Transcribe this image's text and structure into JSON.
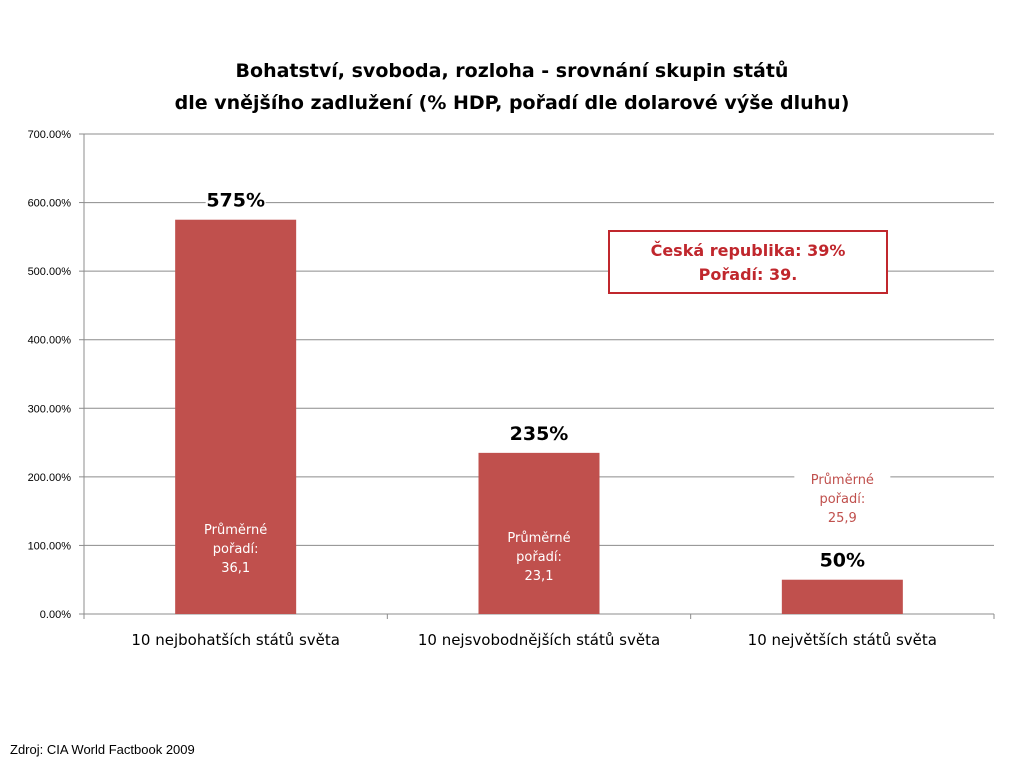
{
  "chart_data": {
    "type": "bar",
    "title": "Bohatství, svoboda, rozloha - srovnání skupin států",
    "subtitle": "dle vnějšího zadlužení (% HDP, pořadí dle dolarové výše dluhu)",
    "categories": [
      "10 nejbohatších států světa",
      "10 nejsvobodnějších států světa",
      "10 největších států světa"
    ],
    "values": [
      575,
      235,
      50
    ],
    "data_labels": [
      "575%",
      "235%",
      "50%"
    ],
    "ylim": [
      0,
      700
    ],
    "y_ticks": [
      "0.00%",
      "100.00%",
      "200.00%",
      "300.00%",
      "400.00%",
      "500.00%",
      "600.00%",
      "700.00%"
    ],
    "grid": true,
    "bar_color": "#c0504d",
    "annotations": [
      {
        "lines": [
          "Průměrné",
          "pořadí:",
          "36,1"
        ],
        "color": "#ffffff"
      },
      {
        "lines": [
          "Průměrné",
          "pořadí:",
          "23,1"
        ],
        "color": "#ffffff"
      },
      {
        "lines": [
          "Průměrné",
          "pořadí:",
          "25,9"
        ],
        "color": "#c0504d"
      }
    ]
  },
  "callout": {
    "line1": "Česká republika: 39%",
    "line2": "Pořadí: 39."
  },
  "source": "Zdroj: CIA World Factbook 2009"
}
